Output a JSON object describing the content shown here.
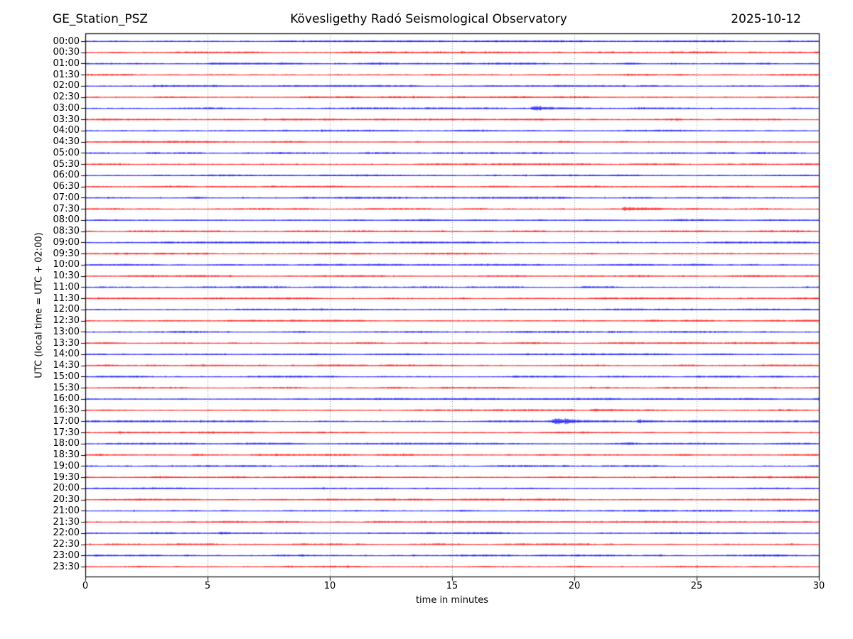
{
  "header": {
    "station": "GE_Station_PSZ",
    "observatory": "Kövesligethy Radó Seismological Observatory",
    "date": "2025-10-12"
  },
  "chart_data": {
    "type": "line",
    "subtype": "helicorder-drum-plot",
    "title": "GE_Station_PSZ — Kövesligethy Radó Seismological Observatory — 2025-10-12",
    "xlabel": "time in minutes",
    "ylabel": "UTC (local time = UTC + 02:00)",
    "x_range": [
      0,
      30
    ],
    "x_ticks": [
      0,
      5,
      10,
      15,
      20,
      25,
      30
    ],
    "minutes_per_row": 30,
    "grid": "vertical dotted gridlines at interior x ticks",
    "grid_color": "#8a8a8a",
    "frame_color": "#000000",
    "trace_colors": {
      "even_rows": "#0000ff",
      "odd_rows": "#ff0000"
    },
    "rows": [
      "00:00",
      "00:30",
      "01:00",
      "01:30",
      "02:00",
      "02:30",
      "03:00",
      "03:30",
      "04:00",
      "04:30",
      "05:00",
      "05:30",
      "06:00",
      "06:30",
      "07:00",
      "07:30",
      "08:00",
      "08:30",
      "09:00",
      "09:30",
      "10:00",
      "10:30",
      "11:00",
      "11:30",
      "12:00",
      "12:30",
      "13:00",
      "13:30",
      "14:00",
      "14:30",
      "15:00",
      "15:30",
      "16:00",
      "16:30",
      "17:00",
      "17:30",
      "18:00",
      "18:30",
      "19:00",
      "19:30",
      "20:00",
      "20:30",
      "21:00",
      "21:30",
      "22:00",
      "22:30",
      "23:00",
      "23:30"
    ],
    "noise_base_amplitude": 1.0,
    "events": [
      {
        "row": "03:00",
        "start_min": 18.2,
        "end_min": 21.8,
        "amplitude": 3.2
      },
      {
        "row": "07:30",
        "start_min": 21.9,
        "end_min": 25.2,
        "amplitude": 3.0
      },
      {
        "row": "16:30",
        "start_min": 20.6,
        "end_min": 22.8,
        "amplitude": 2.2
      },
      {
        "row": "17:00",
        "start_min": 19.05,
        "end_min": 22.3,
        "amplitude": 4.5
      },
      {
        "row": "17:00",
        "start_min": 22.5,
        "end_min": 24.2,
        "amplitude": 2.6
      },
      {
        "row": "17:00",
        "start_min": 24.7,
        "end_min": 26.3,
        "amplitude": 1.2
      },
      {
        "row": "18:00",
        "start_min": 22.0,
        "end_min": 22.8,
        "amplitude": 1.3
      },
      {
        "row": "18:30",
        "start_min": 4.3,
        "end_min": 5.0,
        "amplitude": 1.8
      },
      {
        "row": "19:00",
        "start_min": 12.6,
        "end_min": 13.4,
        "amplitude": 1.4
      },
      {
        "row": "22:00",
        "start_min": 5.4,
        "end_min": 6.6,
        "amplitude": 2.8
      },
      {
        "row": "23:00",
        "start_min": 4.0,
        "end_min": 4.6,
        "amplitude": 1.0
      }
    ]
  }
}
